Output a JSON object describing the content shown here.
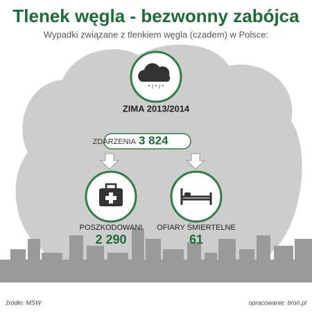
{
  "header": {
    "title": "Tlenek węgla - bezwonny zabójca",
    "subtitle": "Wypadki związane z tlenkiem węgla (czadem) w Polsce:"
  },
  "season": "ZIMA 2013/2014",
  "incidents": {
    "label": "ZDARZENIA",
    "value": "3 824"
  },
  "injured": {
    "label": "POSZKODOWANI",
    "value": "2 290"
  },
  "deaths": {
    "label": "OFIARY ŚMIERTELNE",
    "value": "61"
  },
  "footer": {
    "source": "źródło: MSW",
    "credit": "opracowanie: broń.pl"
  }
}
